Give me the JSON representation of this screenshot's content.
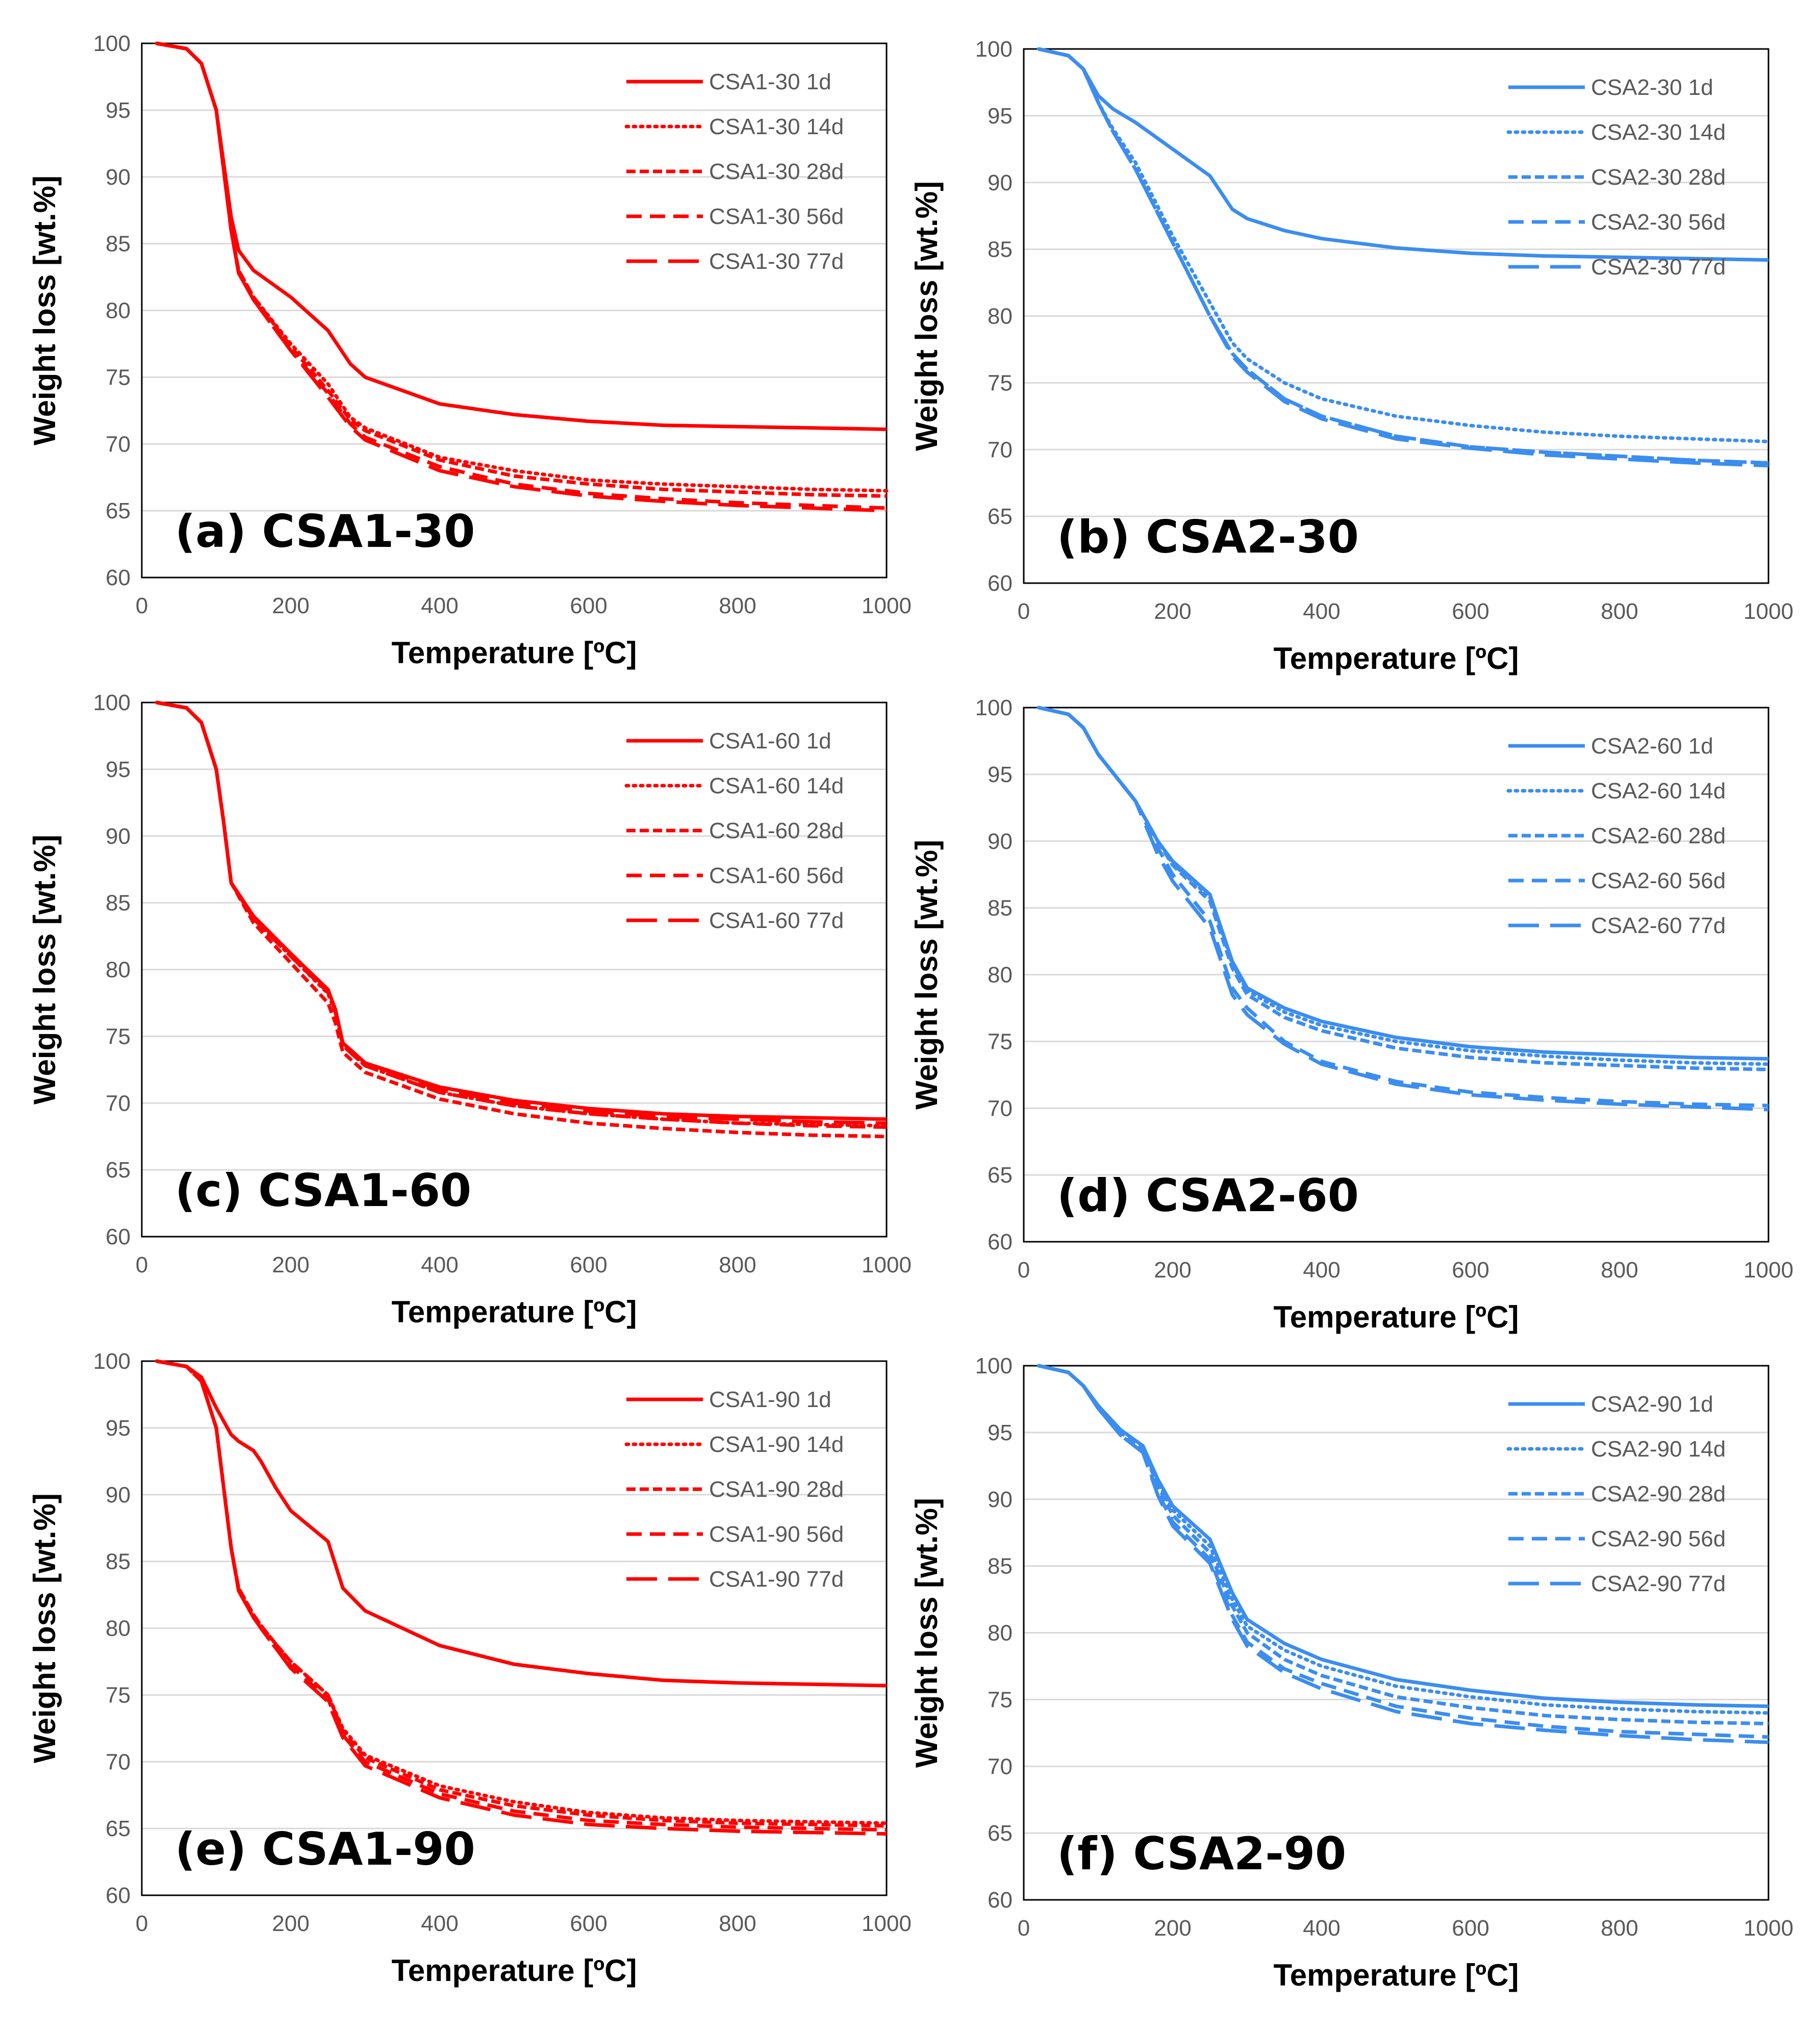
{
  "figure": {
    "xlabel": "Temperature [ºC]",
    "ylabel": "Weight loss [wt.%]",
    "xlim": [
      0,
      1000
    ],
    "ylim": [
      60,
      100
    ],
    "xticks": [
      "0",
      "200",
      "400",
      "600",
      "800",
      "1000"
    ],
    "yticks": [
      "60",
      "65",
      "70",
      "75",
      "80",
      "85",
      "90",
      "95",
      "100"
    ],
    "colors": {
      "csa1": "#ff0000",
      "csa2": "#3b8df0"
    },
    "dash_styles": [
      "solid",
      "dotted",
      "short-dash",
      "dash",
      "long-dash"
    ]
  },
  "chart_data": [
    {
      "type": "line",
      "label": "(a) CSA1-30",
      "color": "#ff0000",
      "title": "",
      "xlabel": "Temperature [ºC]",
      "ylabel": "Weight loss [wt.%]",
      "xlim": [
        0,
        1000
      ],
      "ylim": [
        60,
        100
      ],
      "x": [
        20,
        60,
        80,
        100,
        110,
        120,
        130,
        150,
        200,
        250,
        280,
        300,
        400,
        500,
        600,
        700,
        800,
        900,
        1000
      ],
      "series": [
        {
          "name": "CSA1-30 1d",
          "values": [
            100,
            99.6,
            98.5,
            95,
            91,
            87,
            84.5,
            83,
            81,
            78.5,
            76,
            75,
            73,
            72.2,
            71.7,
            71.4,
            71.3,
            71.2,
            71.1
          ]
        },
        {
          "name": "CSA1-30 14d",
          "values": [
            100,
            99.6,
            98.5,
            95,
            90.5,
            86,
            83,
            81,
            77.5,
            74.5,
            72,
            71.2,
            69,
            68,
            67.3,
            67,
            66.8,
            66.6,
            66.5
          ]
        },
        {
          "name": "CSA1-30 28d",
          "values": [
            100,
            99.6,
            98.5,
            95,
            90.5,
            86,
            83,
            81,
            77.3,
            74,
            71.8,
            71,
            68.8,
            67.6,
            67,
            66.6,
            66.4,
            66.2,
            66.1
          ]
        },
        {
          "name": "CSA1-30 56d",
          "values": [
            100,
            99.6,
            98.5,
            95,
            90.5,
            86,
            82.8,
            80.8,
            77,
            73.8,
            71.5,
            70.5,
            68.3,
            67,
            66.3,
            65.9,
            65.6,
            65.4,
            65.2
          ]
        },
        {
          "name": "CSA1-30 77d",
          "values": [
            100,
            99.6,
            98.5,
            95,
            90.5,
            86,
            82.8,
            80.8,
            77,
            73.5,
            71.3,
            70.3,
            68,
            66.8,
            66.1,
            65.7,
            65.4,
            65.2,
            65.0
          ]
        }
      ]
    },
    {
      "type": "line",
      "label": "(b) CSA2-30",
      "color": "#3b8df0",
      "title": "",
      "xlabel": "Temperature [ºC]",
      "ylabel": "Weight loss [wt.%]",
      "xlim": [
        0,
        1000
      ],
      "ylim": [
        60,
        100
      ],
      "x": [
        20,
        60,
        80,
        100,
        120,
        150,
        200,
        250,
        280,
        300,
        350,
        400,
        500,
        600,
        700,
        800,
        900,
        1000
      ],
      "series": [
        {
          "name": "CSA2-30 1d",
          "values": [
            100,
            99.5,
            98.5,
            96.5,
            95.5,
            94.5,
            92.5,
            90.5,
            88,
            87.3,
            86.4,
            85.8,
            85.1,
            84.7,
            84.5,
            84.4,
            84.3,
            84.2
          ]
        },
        {
          "name": "CSA2-30 14d",
          "values": [
            100,
            99.5,
            98.5,
            96,
            94,
            91.5,
            86,
            81,
            78,
            76.8,
            75,
            73.8,
            72.5,
            71.8,
            71.3,
            71,
            70.8,
            70.6
          ]
        },
        {
          "name": "CSA2-30 28d",
          "values": [
            100,
            99.5,
            98.5,
            96,
            93.8,
            91,
            85.5,
            80,
            77.2,
            76,
            73.8,
            72.5,
            71,
            70.2,
            69.8,
            69.5,
            69.2,
            69.0
          ]
        },
        {
          "name": "CSA2-30 56d",
          "values": [
            100,
            99.5,
            98.5,
            96,
            93.8,
            91,
            85.5,
            80,
            77.2,
            76,
            73.8,
            72.5,
            71,
            70.2,
            69.8,
            69.5,
            69.2,
            69.0
          ]
        },
        {
          "name": "CSA2-30 77d",
          "values": [
            100,
            99.5,
            98.5,
            96,
            93.8,
            91,
            85.5,
            80,
            77,
            75.8,
            73.6,
            72.3,
            70.8,
            70.1,
            69.6,
            69.3,
            69.0,
            68.8
          ]
        }
      ]
    },
    {
      "type": "line",
      "label": "(c) CSA1-60",
      "color": "#ff0000",
      "title": "",
      "xlabel": "Temperature [ºC]",
      "ylabel": "Weight loss [wt.%]",
      "xlim": [
        0,
        1000
      ],
      "ylim": [
        60,
        100
      ],
      "x": [
        20,
        60,
        80,
        100,
        110,
        120,
        150,
        200,
        250,
        260,
        270,
        300,
        400,
        500,
        600,
        700,
        800,
        900,
        1000
      ],
      "series": [
        {
          "name": "CSA1-60 1d",
          "values": [
            100,
            99.6,
            98.5,
            95,
            91,
            86.5,
            84,
            81.2,
            78.5,
            77,
            74.5,
            73,
            71.2,
            70.2,
            69.6,
            69.2,
            69.0,
            68.9,
            68.8
          ]
        },
        {
          "name": "CSA1-60 14d",
          "values": [
            100,
            99.6,
            98.5,
            95,
            91,
            86.5,
            83.8,
            81,
            78.2,
            76.8,
            74.3,
            72.8,
            70.8,
            69.8,
            69.2,
            68.8,
            68.5,
            68.4,
            68.3
          ]
        },
        {
          "name": "CSA1-60 28d",
          "values": [
            100,
            99.6,
            98.5,
            95,
            91,
            86.5,
            83.5,
            80.5,
            77.5,
            76,
            73.8,
            72.3,
            70.3,
            69.2,
            68.5,
            68.1,
            67.8,
            67.6,
            67.5
          ]
        },
        {
          "name": "CSA1-60 56d",
          "values": [
            100,
            99.6,
            98.5,
            95,
            91,
            86.5,
            83.8,
            81,
            78.3,
            76.8,
            74.3,
            72.8,
            70.8,
            69.8,
            69.2,
            68.8,
            68.5,
            68.3,
            68.2
          ]
        },
        {
          "name": "CSA1-60 77d",
          "values": [
            100,
            99.6,
            98.5,
            95,
            91,
            86.5,
            84,
            81.2,
            78.5,
            77,
            74.5,
            73,
            71,
            70,
            69.4,
            69.0,
            68.8,
            68.6,
            68.5
          ]
        }
      ]
    },
    {
      "type": "line",
      "label": "(d) CSA2-60",
      "color": "#3b8df0",
      "title": "",
      "xlabel": "Temperature [ºC]",
      "ylabel": "Weight loss [wt.%]",
      "xlim": [
        0,
        1000
      ],
      "ylim": [
        60,
        100
      ],
      "x": [
        20,
        60,
        80,
        100,
        150,
        180,
        200,
        250,
        280,
        300,
        350,
        400,
        500,
        600,
        700,
        800,
        900,
        1000
      ],
      "series": [
        {
          "name": "CSA2-60 1d",
          "values": [
            100,
            99.5,
            98.5,
            96.5,
            93,
            90,
            88.5,
            86,
            81,
            79,
            77.5,
            76.5,
            75.3,
            74.6,
            74.2,
            74.0,
            73.8,
            73.7
          ]
        },
        {
          "name": "CSA2-60 14d",
          "values": [
            100,
            99.5,
            98.5,
            96.5,
            93,
            90,
            88.3,
            85.8,
            80.8,
            78.8,
            77.2,
            76.2,
            75,
            74.3,
            73.9,
            73.6,
            73.4,
            73.3
          ]
        },
        {
          "name": "CSA2-60 28d",
          "values": [
            100,
            99.5,
            98.5,
            96.5,
            93,
            90,
            88.2,
            85.5,
            80.5,
            78.5,
            76.8,
            75.8,
            74.5,
            73.8,
            73.4,
            73.2,
            73.0,
            72.9
          ]
        },
        {
          "name": "CSA2-60 56d",
          "values": [
            100,
            99.5,
            98.5,
            96.5,
            93,
            89.5,
            87.5,
            84,
            79,
            77.5,
            75,
            73.5,
            72,
            71.2,
            70.8,
            70.5,
            70.3,
            70.2
          ]
        },
        {
          "name": "CSA2-60 77d",
          "values": [
            100,
            99.5,
            98.5,
            96.5,
            93,
            89,
            87,
            83.5,
            78.5,
            77,
            74.8,
            73.3,
            71.8,
            71,
            70.6,
            70.3,
            70.1,
            69.9
          ]
        }
      ]
    },
    {
      "type": "line",
      "label": "(e) CSA1-90",
      "color": "#ff0000",
      "title": "",
      "xlabel": "Temperature [ºC]",
      "ylabel": "Weight loss [wt.%]",
      "xlim": [
        0,
        1000
      ],
      "ylim": [
        60,
        100
      ],
      "x": [
        20,
        60,
        80,
        100,
        110,
        120,
        130,
        150,
        160,
        180,
        200,
        250,
        270,
        300,
        400,
        500,
        600,
        700,
        800,
        900,
        1000
      ],
      "series": [
        {
          "name": "CSA1-90 1d",
          "values": [
            100,
            99.6,
            98.8,
            96.5,
            95.5,
            94.5,
            94,
            93.3,
            92.5,
            90.5,
            88.8,
            86.5,
            83,
            81.3,
            78.7,
            77.3,
            76.6,
            76.1,
            75.9,
            75.8,
            75.7
          ]
        },
        {
          "name": "CSA1-90 14d",
          "values": [
            100,
            99.6,
            98.5,
            95,
            90.5,
            86,
            83,
            81,
            80.2,
            78.8,
            77.5,
            75,
            72.5,
            70.5,
            68.2,
            67,
            66.2,
            65.8,
            65.6,
            65.5,
            65.4
          ]
        },
        {
          "name": "CSA1-90 28d",
          "values": [
            100,
            99.6,
            98.5,
            95,
            90.5,
            86,
            83,
            81,
            80.2,
            78.8,
            77.5,
            75,
            72.3,
            70.3,
            67.9,
            66.7,
            66,
            65.6,
            65.4,
            65.3,
            65.2
          ]
        },
        {
          "name": "CSA1-90 56d",
          "values": [
            100,
            99.6,
            98.5,
            95,
            90.5,
            86,
            82.8,
            80.8,
            80,
            78.5,
            77.2,
            74.7,
            72,
            70,
            67.6,
            66.3,
            65.6,
            65.3,
            65.1,
            65.0,
            64.9
          ]
        },
        {
          "name": "CSA1-90 77d",
          "values": [
            100,
            99.6,
            98.5,
            95,
            90.5,
            86,
            82.8,
            80.8,
            80,
            78.5,
            77,
            74.5,
            71.8,
            69.7,
            67.3,
            66,
            65.3,
            65.0,
            64.8,
            64.7,
            64.6
          ]
        }
      ]
    },
    {
      "type": "line",
      "label": "(f) CSA2-90",
      "color": "#3b8df0",
      "title": "",
      "xlabel": "Temperature [ºC]",
      "ylabel": "Weight loss [wt.%]",
      "xlim": [
        0,
        1000
      ],
      "ylim": [
        60,
        100
      ],
      "x": [
        20,
        60,
        80,
        100,
        130,
        160,
        180,
        200,
        250,
        280,
        300,
        350,
        400,
        500,
        600,
        700,
        800,
        900,
        1000
      ],
      "series": [
        {
          "name": "CSA2-90 1d",
          "values": [
            100,
            99.5,
            98.5,
            97,
            95.2,
            94,
            91.5,
            89.5,
            87,
            83,
            81,
            79.2,
            78,
            76.5,
            75.7,
            75.1,
            74.8,
            74.6,
            74.5
          ]
        },
        {
          "name": "CSA2-90 14d",
          "values": [
            100,
            99.5,
            98.5,
            97,
            95.2,
            94,
            91.2,
            89.2,
            86.5,
            82.5,
            80.5,
            78.7,
            77.5,
            76,
            75.2,
            74.6,
            74.3,
            74.1,
            74.0
          ]
        },
        {
          "name": "CSA2-90 28d",
          "values": [
            100,
            99.5,
            98.5,
            97,
            95,
            93.8,
            91,
            88.8,
            86,
            82,
            80,
            78,
            76.8,
            75.2,
            74.4,
            73.8,
            73.5,
            73.3,
            73.2
          ]
        },
        {
          "name": "CSA2-90 56d",
          "values": [
            100,
            99.5,
            98.5,
            96.8,
            94.8,
            93.5,
            90.5,
            88.3,
            85.5,
            81.3,
            79.3,
            77.3,
            76.2,
            74.5,
            73.6,
            73.0,
            72.6,
            72.4,
            72.2
          ]
        },
        {
          "name": "CSA2-90 77d",
          "values": [
            100,
            99.5,
            98.5,
            96.8,
            94.8,
            93.5,
            90.3,
            88,
            85.2,
            81,
            79,
            77,
            75.8,
            74.1,
            73.2,
            72.7,
            72.3,
            72.0,
            71.8
          ]
        }
      ]
    }
  ]
}
